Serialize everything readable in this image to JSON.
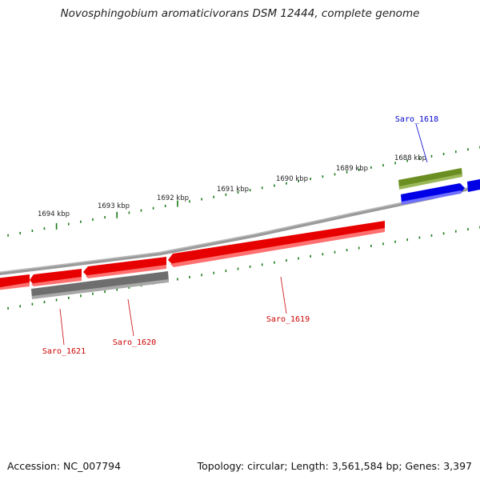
{
  "title": "Novosphingobium aromaticivorans DSM 12444, complete genome",
  "footer": {
    "accession": "Accession: NC_007794",
    "summary": "Topology: circular; Length: 3,561,584 bp; Genes: 3,397"
  },
  "colors": {
    "backbone": "#808080",
    "tick": "#1a7a1a",
    "forward_gene": "#e60000",
    "reverse_gene": "#0000e6",
    "pseudo_gene": "#6e6e6e",
    "rna_gene": "#6b8e23",
    "label_red": "#cc0000",
    "label_blue": "#0000cc"
  },
  "scale_labels": [
    "1688 kbp",
    "1689 kbp",
    "1690 kbp",
    "1691 kbp",
    "1692 kbp",
    "1693 kbp",
    "1694 kbp"
  ],
  "gene_labels": [
    {
      "id": "saro1618",
      "text": "Saro_1618",
      "color": "label_blue"
    },
    {
      "id": "saro1619",
      "text": "Saro_1619",
      "color": "label_red"
    },
    {
      "id": "saro1620",
      "text": "Saro_1620",
      "color": "label_red"
    },
    {
      "id": "saro1621",
      "text": "Saro_1621",
      "color": "label_red"
    }
  ]
}
